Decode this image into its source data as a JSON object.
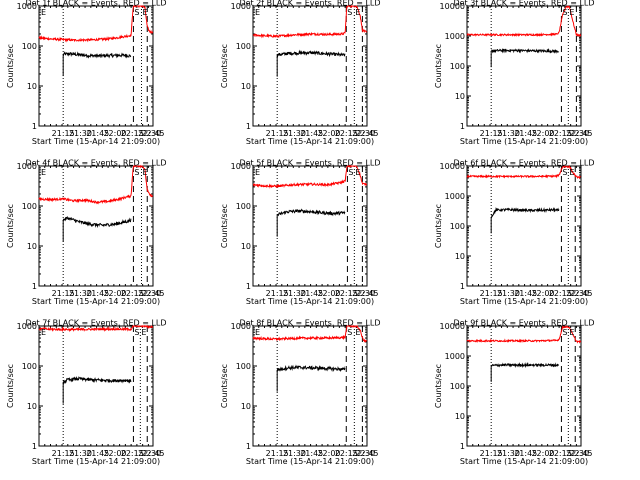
{
  "figure": {
    "ylabel": "Counts/sec",
    "xlabel": "Start Time (15-Apr-14 21:09:00)"
  },
  "chart_data": [
    {
      "type": "line",
      "title": "Det 1f BLACK = Events, RED = LLD",
      "xlabel": "Start Time (15-Apr-14 21:09:00)",
      "ylabel": "Counts/sec",
      "y_scale": "log",
      "ylim": [
        1,
        1000
      ],
      "x_ticks": [
        "21:15",
        "21:30",
        "21:45",
        "22:00",
        "22:15",
        "22:30",
        "22:45"
      ],
      "y_ticks": [
        "1",
        "10",
        "100",
        "1000"
      ],
      "x_minutes": [
        21,
        36,
        51,
        66,
        81,
        96
      ],
      "series": [
        {
          "color": "#000000",
          "x": [
            21,
            27,
            35,
            45,
            55,
            65,
            75,
            80
          ],
          "y": [
            62,
            64,
            60,
            57,
            57,
            58,
            59,
            56
          ]
        },
        {
          "color": "#ff0000",
          "x": [
            0,
            10,
            21,
            30,
            45,
            60,
            70,
            80,
            81.5,
            82,
            84,
            86,
            88,
            90,
            92,
            94,
            96,
            99
          ],
          "y": [
            160,
            150,
            145,
            140,
            142,
            150,
            165,
            185,
            800,
            1000,
            1000,
            1000,
            1000,
            1000,
            900,
            300,
            230,
            220
          ]
        }
      ],
      "markers": [
        {
          "x": 82,
          "label": "S"
        },
        {
          "x": 89,
          "label": "E"
        }
      ],
      "labels_before": [
        "E"
      ],
      "dashed_lines": [
        82,
        94
      ],
      "dotted_lines": [
        21,
        89
      ]
    },
    {
      "type": "line",
      "title": "Det 2f BLACK = Events, RED = LLD",
      "xlabel": "Start Time (15-Apr-14 21:09:00)",
      "ylabel": "Counts/sec",
      "y_scale": "log",
      "ylim": [
        1,
        1000
      ],
      "x_ticks": [
        "21:15",
        "21:30",
        "21:45",
        "22:00",
        "22:15",
        "22:30",
        "22:45"
      ],
      "y_ticks": [
        "1",
        "10",
        "100",
        "1000"
      ],
      "x_minutes": [
        21,
        36,
        51,
        66,
        81,
        96
      ],
      "series": [
        {
          "color": "#000000",
          "x": [
            21,
            30,
            40,
            50,
            60,
            70,
            80
          ],
          "y": [
            60,
            65,
            67,
            68,
            65,
            62,
            59
          ]
        },
        {
          "color": "#ff0000",
          "x": [
            0,
            10,
            21,
            35,
            50,
            65,
            78,
            80,
            81.5,
            82,
            86,
            90,
            93,
            95,
            97,
            99
          ],
          "y": [
            190,
            180,
            175,
            190,
            200,
            195,
            200,
            210,
            1000,
            1000,
            1000,
            1000,
            600,
            250,
            230,
            220
          ]
        }
      ],
      "markers": [
        {
          "x": 81,
          "label": "S"
        },
        {
          "x": 88,
          "label": "E"
        }
      ],
      "labels_before": [
        "E"
      ],
      "dashed_lines": [
        81,
        95
      ],
      "dotted_lines": [
        21,
        88
      ]
    },
    {
      "type": "line",
      "title": "Det 3f BLACK = Events, RED = LLD",
      "xlabel": "Start Time (15-Apr-14 21:09:00)",
      "ylabel": "Counts/sec",
      "y_scale": "log",
      "ylim": [
        1,
        10000
      ],
      "x_ticks": [
        "21:15",
        "21:30",
        "21:45",
        "22:00",
        "22:15",
        "22:30",
        "22:45"
      ],
      "y_ticks": [
        "1",
        "10",
        "100",
        "1000",
        "10000"
      ],
      "x_minutes": [
        21,
        36,
        51,
        66,
        81,
        96
      ],
      "series": [
        {
          "color": "#000000",
          "x": [
            21,
            30,
            40,
            50,
            60,
            70,
            80
          ],
          "y": [
            320,
            330,
            330,
            325,
            320,
            315,
            310
          ]
        },
        {
          "color": "#ff0000",
          "x": [
            0,
            20,
            40,
            60,
            78,
            80,
            83,
            86,
            89,
            92,
            95,
            97,
            99
          ],
          "y": [
            1100,
            1100,
            1100,
            1100,
            1150,
            1300,
            5000,
            9500,
            9500,
            3000,
            1100,
            1050,
            1050
          ]
        }
      ],
      "markers": [
        {
          "x": 82,
          "label": "S"
        },
        {
          "x": 88,
          "label": "E"
        }
      ],
      "labels_before": [],
      "dashed_lines": [
        82,
        95
      ],
      "dotted_lines": [
        21,
        88
      ]
    },
    {
      "type": "line",
      "title": "Det 4f BLACK = Events, RED = LLD",
      "xlabel": "Start Time (15-Apr-14 21:09:00)",
      "ylabel": "Counts/sec",
      "y_scale": "log",
      "ylim": [
        1,
        1000
      ],
      "x_ticks": [
        "21:15",
        "21:30",
        "21:45",
        "22:00",
        "22:15",
        "22:30",
        "22:45"
      ],
      "y_ticks": [
        "1",
        "10",
        "100",
        "1000"
      ],
      "x_minutes": [
        21,
        36,
        51,
        66,
        81,
        96
      ],
      "series": [
        {
          "color": "#000000",
          "x": [
            21,
            25,
            35,
            45,
            55,
            65,
            75,
            80
          ],
          "y": [
            45,
            50,
            40,
            35,
            33,
            35,
            40,
            45
          ]
        },
        {
          "color": "#ff0000",
          "x": [
            0,
            10,
            21,
            30,
            40,
            50,
            60,
            70,
            80,
            81.5,
            82,
            86,
            90,
            92,
            94,
            96,
            99
          ],
          "y": [
            150,
            145,
            150,
            135,
            140,
            125,
            130,
            150,
            180,
            800,
            1000,
            1000,
            1000,
            800,
            250,
            190,
            175
          ]
        }
      ],
      "markers": [
        {
          "x": 82,
          "label": "S"
        },
        {
          "x": 89,
          "label": "E"
        }
      ],
      "labels_before": [
        "E"
      ],
      "dashed_lines": [
        82,
        94
      ],
      "dotted_lines": [
        21,
        89
      ]
    },
    {
      "type": "line",
      "title": "Det 5f BLACK = Events, RED = LLD",
      "xlabel": "Start Time (15-Apr-14 21:09:00)",
      "ylabel": "Counts/sec",
      "y_scale": "log",
      "ylim": [
        1,
        1000
      ],
      "x_ticks": [
        "21:15",
        "21:30",
        "21:45",
        "22:00",
        "22:15",
        "22:30",
        "22:45"
      ],
      "y_ticks": [
        "1",
        "10",
        "100",
        "1000"
      ],
      "x_minutes": [
        21,
        36,
        51,
        66,
        81,
        96
      ],
      "series": [
        {
          "color": "#000000",
          "x": [
            21,
            30,
            40,
            50,
            60,
            70,
            80
          ],
          "y": [
            60,
            72,
            75,
            72,
            68,
            65,
            68
          ]
        },
        {
          "color": "#ff0000",
          "x": [
            0,
            10,
            21,
            35,
            50,
            65,
            75,
            80,
            81.5,
            82,
            86,
            90,
            93,
            95,
            97,
            99
          ],
          "y": [
            340,
            320,
            310,
            340,
            350,
            340,
            380,
            420,
            900,
            1000,
            1000,
            1000,
            600,
            360,
            350,
            350
          ]
        }
      ],
      "markers": [
        {
          "x": 82,
          "label": "S"
        },
        {
          "x": 88,
          "label": "E"
        }
      ],
      "labels_before": [
        "E"
      ],
      "dashed_lines": [
        82,
        95
      ],
      "dotted_lines": [
        21,
        88
      ]
    },
    {
      "type": "line",
      "title": "Det 6f BLACK = Events, RED = LLD",
      "xlabel": "Start Time (15-Apr-14 21:09:00)",
      "ylabel": "Counts/sec",
      "y_scale": "log",
      "ylim": [
        1,
        10000
      ],
      "x_ticks": [
        "21:15",
        "21:30",
        "21:45",
        "22:00",
        "22:15",
        "22:30",
        "22:45"
      ],
      "y_ticks": [
        "1",
        "10",
        "100",
        "1000",
        "10000"
      ],
      "x_minutes": [
        21,
        36,
        51,
        66,
        81,
        96
      ],
      "series": [
        {
          "color": "#000000",
          "x": [
            21,
            25,
            35,
            45,
            55,
            65,
            75,
            80
          ],
          "y": [
            200,
            340,
            350,
            340,
            330,
            335,
            345,
            330
          ]
        },
        {
          "color": "#ff0000",
          "x": [
            0,
            20,
            40,
            60,
            78,
            80,
            83,
            86,
            89,
            92,
            95,
            97,
            99
          ],
          "y": [
            4500,
            4500,
            4500,
            4500,
            4600,
            5000,
            9500,
            9500,
            9500,
            6000,
            4300,
            4200,
            4200
          ]
        }
      ],
      "markers": [
        {
          "x": 82,
          "label": "S"
        },
        {
          "x": 88,
          "label": "E"
        }
      ],
      "labels_before": [],
      "dashed_lines": [
        82,
        94
      ],
      "dotted_lines": [
        21,
        88
      ]
    },
    {
      "type": "line",
      "title": "Det 7f BLACK = Events, RED = LLD",
      "xlabel": "Start Time (15-Apr-14 21:09:00)",
      "ylabel": "Counts/sec",
      "y_scale": "log",
      "ylim": [
        1,
        1000
      ],
      "x_ticks": [
        "21:15",
        "21:30",
        "21:45",
        "22:00",
        "22:15",
        "22:30",
        "22:45"
      ],
      "y_ticks": [
        "1",
        "10",
        "100",
        "1000"
      ],
      "x_minutes": [
        21,
        36,
        51,
        66,
        81,
        96
      ],
      "series": [
        {
          "color": "#000000",
          "x": [
            21,
            25,
            35,
            45,
            55,
            65,
            75,
            80
          ],
          "y": [
            40,
            45,
            48,
            45,
            44,
            43,
            44,
            42
          ]
        },
        {
          "color": "#ff0000",
          "x": [
            0,
            10,
            21,
            35,
            50,
            65,
            75,
            80,
            81.5,
            82,
            86,
            90,
            93,
            95,
            97,
            99
          ],
          "y": [
            850,
            830,
            820,
            820,
            830,
            840,
            830,
            830,
            950,
            1000,
            1000,
            1000,
            1000,
            950,
            950,
            950
          ]
        }
      ],
      "markers": [
        {
          "x": 82,
          "label": "S"
        },
        {
          "x": 88,
          "label": "E"
        }
      ],
      "labels_before": [
        "E"
      ],
      "dashed_lines": [
        82,
        94
      ],
      "dotted_lines": [
        21,
        88
      ]
    },
    {
      "type": "line",
      "title": "Det 8f BLACK = Events, RED = LLD",
      "xlabel": "Start Time (15-Apr-14 21:09:00)",
      "ylabel": "Counts/sec",
      "y_scale": "log",
      "ylim": [
        1,
        1000
      ],
      "x_ticks": [
        "21:15",
        "21:30",
        "21:45",
        "22:00",
        "22:15",
        "22:30",
        "22:45"
      ],
      "y_ticks": [
        "1",
        "10",
        "100",
        "1000"
      ],
      "x_minutes": [
        21,
        36,
        51,
        66,
        81,
        96
      ],
      "series": [
        {
          "color": "#000000",
          "x": [
            21,
            30,
            40,
            50,
            60,
            70,
            80
          ],
          "y": [
            80,
            90,
            92,
            90,
            88,
            85,
            82
          ]
        },
        {
          "color": "#ff0000",
          "x": [
            0,
            10,
            21,
            35,
            50,
            65,
            75,
            80,
            81.5,
            82,
            86,
            90,
            93,
            95,
            97,
            99
          ],
          "y": [
            500,
            480,
            470,
            490,
            500,
            500,
            510,
            520,
            950,
            1000,
            1000,
            1000,
            800,
            500,
            420,
            420
          ]
        }
      ],
      "markers": [
        {
          "x": 81,
          "label": "S"
        },
        {
          "x": 88,
          "label": "E"
        }
      ],
      "labels_before": [
        "E"
      ],
      "dashed_lines": [
        81,
        95
      ],
      "dotted_lines": [
        21,
        88
      ]
    },
    {
      "type": "line",
      "title": "Det 9f BLACK = Events, RED = LLD",
      "xlabel": "Start Time (15-Apr-14 21:09:00)",
      "ylabel": "Counts/sec",
      "y_scale": "log",
      "ylim": [
        1,
        10000
      ],
      "x_ticks": [
        "21:15",
        "21:30",
        "21:45",
        "22:00",
        "22:15",
        "22:30",
        "22:45"
      ],
      "y_ticks": [
        "1",
        "10",
        "100",
        "1000",
        "10000"
      ],
      "x_minutes": [
        21,
        36,
        51,
        66,
        81,
        96
      ],
      "series": [
        {
          "color": "#000000",
          "x": [
            21,
            30,
            40,
            50,
            60,
            70,
            80
          ],
          "y": [
            480,
            500,
            500,
            500,
            500,
            500,
            490
          ]
        },
        {
          "color": "#ff0000",
          "x": [
            0,
            20,
            40,
            60,
            78,
            80,
            83,
            86,
            89,
            92,
            95,
            97,
            99
          ],
          "y": [
            3200,
            3200,
            3200,
            3200,
            3300,
            3600,
            9000,
            9500,
            9000,
            5000,
            3100,
            3000,
            3000
          ]
        }
      ],
      "markers": [
        {
          "x": 82,
          "label": "S"
        },
        {
          "x": 88,
          "label": "E"
        }
      ],
      "labels_before": [],
      "dashed_lines": [
        82,
        94
      ],
      "dotted_lines": [
        21,
        88
      ]
    }
  ]
}
